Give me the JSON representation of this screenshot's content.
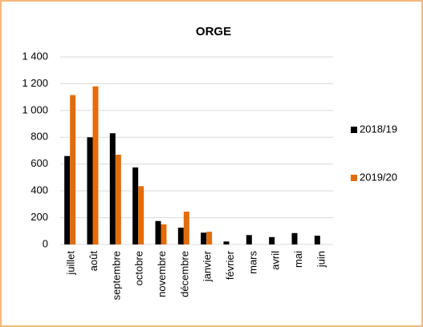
{
  "chart_data": {
    "type": "bar",
    "title": "ORGE",
    "categories": [
      "juillet",
      "août",
      "septembre",
      "octobre",
      "novembre",
      "décembre",
      "janvier",
      "février",
      "mars",
      "avril",
      "mai",
      "juin"
    ],
    "series": [
      {
        "name": "2018/19",
        "color": "#000000",
        "values": [
          660,
          800,
          830,
          575,
          175,
          125,
          88,
          22,
          70,
          55,
          85,
          65
        ]
      },
      {
        "name": "2019/20",
        "color": "#e36c0a",
        "values": [
          1115,
          1180,
          670,
          435,
          150,
          245,
          95,
          null,
          null,
          null,
          null,
          null
        ]
      }
    ],
    "ylim": [
      0,
      1400
    ],
    "yticks": [
      0,
      200,
      400,
      600,
      800,
      {
        "value": 1000,
        "label": "1 000"
      },
      {
        "value": 1200,
        "label": "1 200"
      },
      {
        "value": 1400,
        "label": "1 400"
      }
    ],
    "grid": true,
    "legend": "right"
  }
}
